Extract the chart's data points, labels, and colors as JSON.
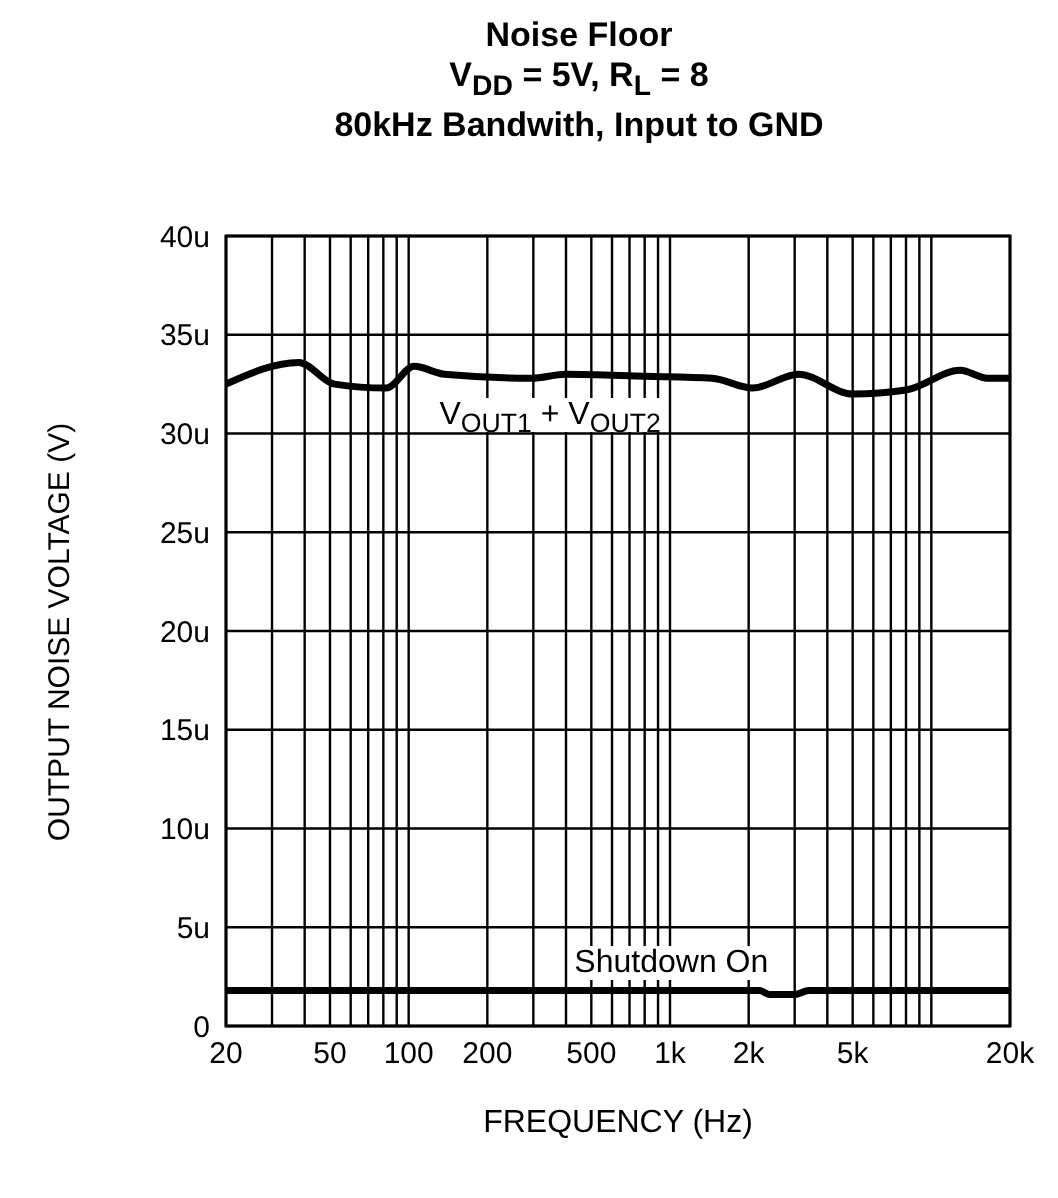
{
  "chart_data": {
    "type": "line",
    "title": "Noise Floor",
    "subtitle": "V$_{DD}$ = 5V, R$_{L}$ = 8\n80kHz Bandwith, Input to GND",
    "xlabel": "FREQUENCY (Hz)",
    "ylabel": "OUTPUT NOISE VOLTAGE (V)",
    "log": "x",
    "grid": true,
    "line_style": "solid",
    "xlim": [
      20,
      20000
    ],
    "xticks": [
      20,
      {
        "value": 30,
        "label": null
      },
      {
        "value": 40,
        "label": null
      },
      50,
      {
        "value": 60,
        "label": null
      },
      {
        "value": 70,
        "label": null
      },
      {
        "value": 80,
        "label": null
      },
      {
        "value": 90,
        "label": null
      },
      100,
      200,
      {
        "value": 300,
        "label": null
      },
      {
        "value": 400,
        "label": null
      },
      500,
      {
        "value": 600,
        "label": null
      },
      {
        "value": 700,
        "label": null
      },
      {
        "value": 800,
        "label": null
      },
      {
        "value": 900,
        "label": null
      },
      {
        "value": 1000,
        "label": "1k"
      },
      {
        "value": 2000,
        "label": "2k"
      },
      {
        "value": 3000,
        "label": null
      },
      {
        "value": 4000,
        "label": null
      },
      {
        "value": 5000,
        "label": "5k"
      },
      {
        "value": 6000,
        "label": null
      },
      {
        "value": 7000,
        "label": null
      },
      {
        "value": 8000,
        "label": null
      },
      {
        "value": 9000,
        "label": null
      },
      {
        "value": 10000,
        "label": null
      },
      {
        "value": 20000,
        "label": "20k"
      }
    ],
    "ylim": [
      0,
      40
    ],
    "yticks": [
      0,
      {
        "value": 5,
        "label": "5u"
      },
      {
        "value": 10,
        "label": "10u"
      },
      {
        "value": 15,
        "label": "15u"
      },
      {
        "value": 20,
        "label": "20u"
      },
      {
        "value": 25,
        "label": "25u"
      },
      {
        "value": 30,
        "label": "30u"
      },
      {
        "value": 35,
        "label": "35u"
      },
      {
        "value": 40,
        "label": "40u"
      }
    ],
    "series": [
      {
        "name": "V$_{OUT1}$ + V$_{OUT2}$",
        "color": "#000000",
        "x": [
          20,
          38,
          52,
          82,
          105,
          137,
          295,
          400,
          800,
          1450,
          2070,
          3100,
          5000,
          8000,
          12900,
          16400,
          20000
        ],
        "values": [
          32.5,
          33.6,
          32.5,
          32.3,
          33.4,
          33.0,
          32.8,
          33.0,
          32.9,
          32.8,
          32.3,
          33.0,
          32.0,
          32.2,
          33.2,
          32.8,
          32.8
        ]
      },
      {
        "name": "Shutdown On",
        "color": "#000000",
        "x": [
          20,
          100,
          1000,
          2200,
          2400,
          3000,
          3400,
          10000,
          20000
        ],
        "values": [
          1.8,
          1.8,
          1.8,
          1.8,
          1.6,
          1.6,
          1.8,
          1.8,
          1.8
        ]
      }
    ]
  }
}
